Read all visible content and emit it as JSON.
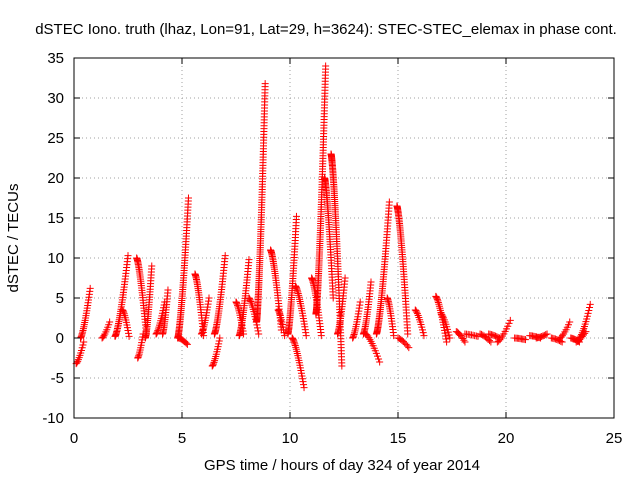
{
  "chart_data": {
    "type": "scatter",
    "title": "dSTEC Iono. truth (lhaz, Lon=91, Lat=29, h=3624): STEC-STEC_elemax in phase cont.",
    "xlabel": "GPS time / hours of day 324 of year 2014",
    "ylabel": "dSTEC  / TECUs",
    "xlim": [
      0,
      25
    ],
    "ylim": [
      -10,
      35
    ],
    "xticks": [
      0,
      5,
      10,
      15,
      20,
      25
    ],
    "yticks": [
      -10,
      -5,
      0,
      5,
      10,
      15,
      20,
      25,
      30,
      35
    ],
    "grid": true,
    "legend": "none",
    "marker": "plus",
    "color": "#ff0000",
    "arcs": [
      {
        "start": 0.1,
        "end": 0.45,
        "from": -3.2,
        "to": -0.5
      },
      {
        "start": 0.3,
        "end": 0.75,
        "from": 0.0,
        "to": 6.2
      },
      {
        "start": 1.3,
        "end": 1.65,
        "from": 0.0,
        "to": 2.0
      },
      {
        "start": 1.9,
        "end": 2.5,
        "from": 0.2,
        "to": 10.3
      },
      {
        "start": 2.25,
        "end": 2.55,
        "from": 3.5,
        "to": 0.2
      },
      {
        "start": 2.9,
        "end": 3.35,
        "from": 10.0,
        "to": 0.5
      },
      {
        "start": 2.95,
        "end": 3.2,
        "from": -2.5,
        "to": 0.5
      },
      {
        "start": 3.3,
        "end": 3.6,
        "from": 0.0,
        "to": 9.0
      },
      {
        "start": 3.8,
        "end": 4.2,
        "from": 0.5,
        "to": 4.5
      },
      {
        "start": 4.1,
        "end": 4.35,
        "from": 0.5,
        "to": 6.0
      },
      {
        "start": 4.8,
        "end": 5.3,
        "from": 0.0,
        "to": 17.5
      },
      {
        "start": 4.85,
        "end": 5.25,
        "from": 0.0,
        "to": -0.8
      },
      {
        "start": 5.6,
        "end": 6.0,
        "from": 8.0,
        "to": 0.3
      },
      {
        "start": 5.9,
        "end": 6.25,
        "from": 0.5,
        "to": 5.0
      },
      {
        "start": 6.4,
        "end": 6.75,
        "from": -3.5,
        "to": 0.0
      },
      {
        "start": 6.5,
        "end": 7.0,
        "from": 0.5,
        "to": 10.3
      },
      {
        "start": 7.5,
        "end": 7.85,
        "from": 4.5,
        "to": 0.5
      },
      {
        "start": 7.65,
        "end": 8.1,
        "from": 0.3,
        "to": 9.8
      },
      {
        "start": 8.1,
        "end": 8.55,
        "from": 5.0,
        "to": 0.5
      },
      {
        "start": 8.45,
        "end": 8.85,
        "from": 2.0,
        "to": 31.8
      },
      {
        "start": 9.1,
        "end": 9.6,
        "from": 11.0,
        "to": 1.0
      },
      {
        "start": 9.45,
        "end": 9.75,
        "from": 3.5,
        "to": 0.3
      },
      {
        "start": 9.9,
        "end": 10.3,
        "from": 0.5,
        "to": 15.2
      },
      {
        "start": 10.1,
        "end": 10.65,
        "from": 0.0,
        "to": -6.2
      },
      {
        "start": 10.25,
        "end": 10.75,
        "from": 6.5,
        "to": 0.3
      },
      {
        "start": 11.0,
        "end": 11.45,
        "from": 7.5,
        "to": 0.3
      },
      {
        "start": 11.2,
        "end": 11.65,
        "from": 3.0,
        "to": 34.0
      },
      {
        "start": 11.6,
        "end": 12.0,
        "from": 20.0,
        "to": 5.0
      },
      {
        "start": 11.9,
        "end": 12.4,
        "from": 23.0,
        "to": -3.5
      },
      {
        "start": 12.2,
        "end": 12.55,
        "from": 0.5,
        "to": 7.5
      },
      {
        "start": 12.9,
        "end": 13.25,
        "from": 0.0,
        "to": 4.5
      },
      {
        "start": 13.4,
        "end": 13.75,
        "from": 0.5,
        "to": 7.0
      },
      {
        "start": 13.5,
        "end": 14.15,
        "from": 0.5,
        "to": -3.0
      },
      {
        "start": 14.0,
        "end": 14.6,
        "from": 0.5,
        "to": 17.0
      },
      {
        "start": 14.5,
        "end": 14.8,
        "from": 5.0,
        "to": 0.3
      },
      {
        "start": 14.95,
        "end": 15.45,
        "from": 16.5,
        "to": 0.5
      },
      {
        "start": 15.0,
        "end": 15.5,
        "from": 0.0,
        "to": -1.2
      },
      {
        "start": 15.8,
        "end": 16.2,
        "from": 3.5,
        "to": 0.3
      },
      {
        "start": 16.75,
        "end": 17.25,
        "from": 5.2,
        "to": -0.5
      },
      {
        "start": 17.0,
        "end": 17.4,
        "from": 3.0,
        "to": 0.0
      },
      {
        "start": 17.7,
        "end": 18.1,
        "from": 0.8,
        "to": -0.5
      },
      {
        "start": 18.1,
        "end": 18.7,
        "from": 0.5,
        "to": 0.2
      },
      {
        "start": 18.8,
        "end": 19.3,
        "from": 0.5,
        "to": -0.5
      },
      {
        "start": 19.2,
        "end": 19.7,
        "from": 0.5,
        "to": 0.0
      },
      {
        "start": 19.6,
        "end": 20.2,
        "from": -0.5,
        "to": 2.2
      },
      {
        "start": 20.4,
        "end": 20.9,
        "from": 0.0,
        "to": -0.2
      },
      {
        "start": 21.1,
        "end": 21.6,
        "from": 0.3,
        "to": 0.0
      },
      {
        "start": 21.4,
        "end": 21.9,
        "from": 0.0,
        "to": 0.5
      },
      {
        "start": 22.1,
        "end": 22.6,
        "from": 0.0,
        "to": -0.5
      },
      {
        "start": 22.5,
        "end": 22.95,
        "from": 0.0,
        "to": 2.0
      },
      {
        "start": 23.0,
        "end": 23.4,
        "from": 0.0,
        "to": -0.5
      },
      {
        "start": 23.25,
        "end": 23.7,
        "from": -0.5,
        "to": 0.8
      },
      {
        "start": 23.4,
        "end": 23.9,
        "from": 0.0,
        "to": 4.2
      }
    ]
  }
}
